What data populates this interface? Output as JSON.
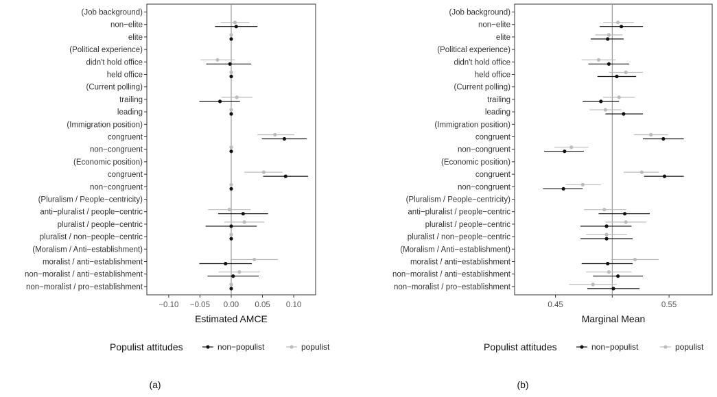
{
  "row_labels": [
    "(Job background)",
    "non−elite",
    "elite",
    "(Political experience)",
    "didn't hold office",
    "held office",
    "(Current polling)",
    "trailing",
    "leading",
    "(Immigration position)",
    "congruent",
    "non−congruent",
    "(Economic position)",
    "congruent",
    "non−congruent",
    "(Pluralism / People−centricity)",
    "anti−pluralist / people−centric",
    "pluralist / people−centric",
    "pluralist / non−people−centric",
    "(Moralism / Anti−establishment)",
    "moralist / anti−establishment",
    "non−moralist / anti−establishment",
    "non−moralist / pro−establishment"
  ],
  "legend": {
    "title": "Populist attitudes",
    "items": [
      {
        "name": "non−populist",
        "color": "#111111"
      },
      {
        "name": "populist",
        "color": "#bbbbbb"
      }
    ]
  },
  "colors": {
    "non_populist": "#111111",
    "populist": "#bbbbbb",
    "axis_frame": "#333333",
    "reference_line": "#999999"
  },
  "chart_data": [
    {
      "type": "scatter",
      "panel_label": "(a)",
      "xlabel": "Estimated AMCE",
      "xlim": [
        -0.135,
        0.135
      ],
      "xticks": [
        -0.1,
        -0.05,
        0.0,
        0.05,
        0.1
      ],
      "xtick_labels": [
        "−0.10",
        "−0.05",
        "0.00",
        "0.05",
        "0.10"
      ],
      "reference_line": 0,
      "series": [
        {
          "name": "non−populist",
          "points": [
            null,
            {
              "est": 0.008,
              "lo": -0.026,
              "hi": 0.042
            },
            {
              "est": 0,
              "lo": 0,
              "hi": 0
            },
            null,
            {
              "est": -0.002,
              "lo": -0.04,
              "hi": 0.032
            },
            {
              "est": 0,
              "lo": 0,
              "hi": 0
            },
            null,
            {
              "est": -0.018,
              "lo": -0.051,
              "hi": 0.014
            },
            {
              "est": 0,
              "lo": 0,
              "hi": 0
            },
            null,
            {
              "est": 0.085,
              "lo": 0.049,
              "hi": 0.121
            },
            {
              "est": 0,
              "lo": 0,
              "hi": 0
            },
            null,
            {
              "est": 0.087,
              "lo": 0.051,
              "hi": 0.123
            },
            {
              "est": 0,
              "lo": 0,
              "hi": 0
            },
            null,
            {
              "est": 0.019,
              "lo": -0.021,
              "hi": 0.059
            },
            {
              "est": 0,
              "lo": -0.041,
              "hi": 0.041
            },
            {
              "est": 0,
              "lo": 0,
              "hi": 0
            },
            null,
            {
              "est": -0.009,
              "lo": -0.051,
              "hi": 0.033
            },
            {
              "est": 0.003,
              "lo": -0.038,
              "hi": 0.044
            },
            {
              "est": 0,
              "lo": 0,
              "hi": 0
            }
          ]
        },
        {
          "name": "populist",
          "points": [
            null,
            {
              "est": 0.006,
              "lo": -0.017,
              "hi": 0.029
            },
            {
              "est": 0,
              "lo": 0,
              "hi": 0
            },
            null,
            {
              "est": -0.022,
              "lo": -0.049,
              "hi": 0.006
            },
            {
              "est": 0,
              "lo": 0,
              "hi": 0
            },
            null,
            {
              "est": 0.009,
              "lo": -0.016,
              "hi": 0.034
            },
            {
              "est": 0,
              "lo": 0,
              "hi": 0
            },
            null,
            {
              "est": 0.07,
              "lo": 0.042,
              "hi": 0.101
            },
            {
              "est": 0,
              "lo": 0,
              "hi": 0
            },
            null,
            {
              "est": 0.052,
              "lo": 0.021,
              "hi": 0.082
            },
            {
              "est": 0,
              "lo": 0,
              "hi": 0
            },
            null,
            {
              "est": -0.003,
              "lo": -0.037,
              "hi": 0.031
            },
            {
              "est": 0.021,
              "lo": -0.011,
              "hi": 0.053
            },
            {
              "est": 0,
              "lo": 0,
              "hi": 0
            },
            null,
            {
              "est": 0.037,
              "lo": 0,
              "hi": 0.075
            },
            {
              "est": 0.013,
              "lo": -0.02,
              "hi": 0.046
            },
            {
              "est": 0,
              "lo": -0.003,
              "hi": 0.003
            }
          ]
        }
      ]
    },
    {
      "type": "scatter",
      "panel_label": "(b)",
      "xlabel": "Marginal Mean",
      "xlim": [
        0.414,
        0.588
      ],
      "xticks": [
        0.45,
        0.5,
        0.55
      ],
      "xtick_labels": [
        "0.45",
        "",
        "0.55"
      ],
      "reference_line": 0.5,
      "series": [
        {
          "name": "non−populist",
          "points": [
            null,
            {
              "est": 0.508,
              "lo": 0.489,
              "hi": 0.527
            },
            {
              "est": 0.496,
              "lo": 0.481,
              "hi": 0.51
            },
            null,
            {
              "est": 0.497,
              "lo": 0.479,
              "hi": 0.515
            },
            {
              "est": 0.504,
              "lo": 0.487,
              "hi": 0.521
            },
            null,
            {
              "est": 0.49,
              "lo": 0.474,
              "hi": 0.506
            },
            {
              "est": 0.51,
              "lo": 0.494,
              "hi": 0.527
            },
            null,
            {
              "est": 0.545,
              "lo": 0.527,
              "hi": 0.563
            },
            {
              "est": 0.458,
              "lo": 0.44,
              "hi": 0.475
            },
            null,
            {
              "est": 0.546,
              "lo": 0.528,
              "hi": 0.563
            },
            {
              "est": 0.457,
              "lo": 0.439,
              "hi": 0.474
            },
            null,
            {
              "est": 0.511,
              "lo": 0.488,
              "hi": 0.533
            },
            {
              "est": 0.495,
              "lo": 0.472,
              "hi": 0.517
            },
            {
              "est": 0.495,
              "lo": 0.472,
              "hi": 0.518
            },
            null,
            {
              "est": 0.496,
              "lo": 0.473,
              "hi": 0.518
            },
            {
              "est": 0.505,
              "lo": 0.483,
              "hi": 0.527
            },
            {
              "est": 0.501,
              "lo": 0.478,
              "hi": 0.524
            }
          ]
        },
        {
          "name": "populist",
          "points": [
            null,
            {
              "est": 0.505,
              "lo": 0.492,
              "hi": 0.519
            },
            {
              "est": 0.497,
              "lo": 0.485,
              "hi": 0.509
            },
            null,
            {
              "est": 0.488,
              "lo": 0.473,
              "hi": 0.503
            },
            {
              "est": 0.512,
              "lo": 0.497,
              "hi": 0.527
            },
            null,
            {
              "est": 0.506,
              "lo": 0.492,
              "hi": 0.52
            },
            {
              "est": 0.494,
              "lo": 0.48,
              "hi": 0.508
            },
            null,
            {
              "est": 0.534,
              "lo": 0.519,
              "hi": 0.549
            },
            {
              "est": 0.464,
              "lo": 0.449,
              "hi": 0.479
            },
            null,
            {
              "est": 0.526,
              "lo": 0.51,
              "hi": 0.541
            },
            {
              "est": 0.474,
              "lo": 0.459,
              "hi": 0.49
            },
            null,
            {
              "est": 0.493,
              "lo": 0.475,
              "hi": 0.512
            },
            {
              "est": 0.512,
              "lo": 0.494,
              "hi": 0.53
            },
            {
              "est": 0.495,
              "lo": 0.477,
              "hi": 0.513
            },
            null,
            {
              "est": 0.52,
              "lo": 0.499,
              "hi": 0.541
            },
            {
              "est": 0.497,
              "lo": 0.477,
              "hi": 0.517
            },
            {
              "est": 0.483,
              "lo": 0.462,
              "hi": 0.504
            }
          ]
        }
      ]
    }
  ]
}
